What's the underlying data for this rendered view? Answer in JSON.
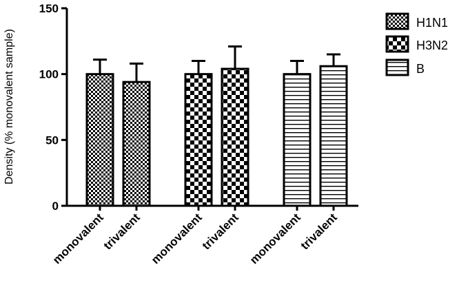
{
  "chart_data": {
    "type": "bar",
    "ylabel": "Density (% monovalent sample)",
    "ylim": [
      0,
      150
    ],
    "yticks": [
      0,
      50,
      100,
      150
    ],
    "grid": false,
    "legend_placement": "top-right",
    "groups": [
      {
        "series": "H1N1",
        "pattern": "fine-checker",
        "bars": [
          {
            "category": "monovalent",
            "value": 100,
            "error": 11
          },
          {
            "category": "trivalent",
            "value": 94,
            "error": 14
          }
        ]
      },
      {
        "series": "H3N2",
        "pattern": "coarse-checker",
        "bars": [
          {
            "category": "monovalent",
            "value": 100,
            "error": 10
          },
          {
            "category": "trivalent",
            "value": 104,
            "error": 17
          }
        ]
      },
      {
        "series": "B",
        "pattern": "horizontal-stripes",
        "bars": [
          {
            "category": "monovalent",
            "value": 100,
            "error": 10
          },
          {
            "category": "trivalent",
            "value": 106,
            "error": 9
          }
        ]
      }
    ],
    "legend": [
      "H1N1",
      "H3N2",
      "B"
    ]
  }
}
